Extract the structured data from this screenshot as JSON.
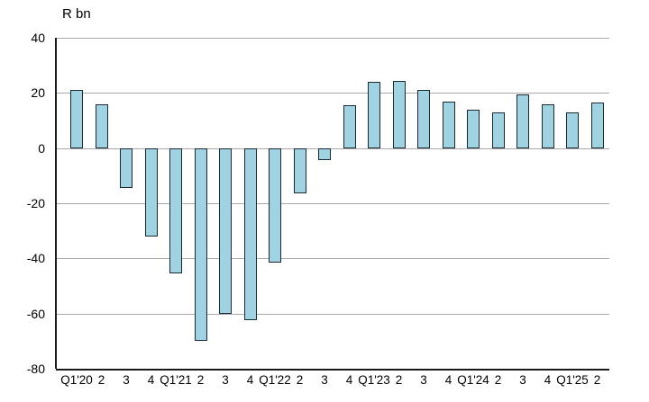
{
  "chart_data": {
    "type": "bar",
    "title": "R bn",
    "ylabel": "R bn",
    "xlabel": "",
    "categories": [
      "Q1'20",
      "2",
      "3",
      "4",
      "Q1'21",
      "2",
      "3",
      "4",
      "Q1'22",
      "2",
      "3",
      "4",
      "Q1'23",
      "2",
      "3",
      "4",
      "Q1'24",
      "2",
      "3",
      "4",
      "Q1'25",
      "2"
    ],
    "values": [
      21,
      16,
      -14.5,
      -32,
      -45.5,
      -70,
      -60,
      -62.5,
      -41.5,
      -16.5,
      -4.5,
      15.5,
      24,
      24.5,
      21,
      17,
      14,
      13,
      19.5,
      16,
      13,
      16.5
    ],
    "ylim": [
      -80,
      40
    ],
    "yticks": [
      40,
      20,
      0,
      -20,
      -40,
      -60,
      -80
    ],
    "grid": "horizontal",
    "legend": "none",
    "colors": {
      "bar_fill": "#9FD3E2",
      "bar_border": "#1C2B33",
      "gridline": "#A9A9A9",
      "axis": "#1A1A1A",
      "text": "#000000",
      "background": "#FFFFFF"
    }
  }
}
